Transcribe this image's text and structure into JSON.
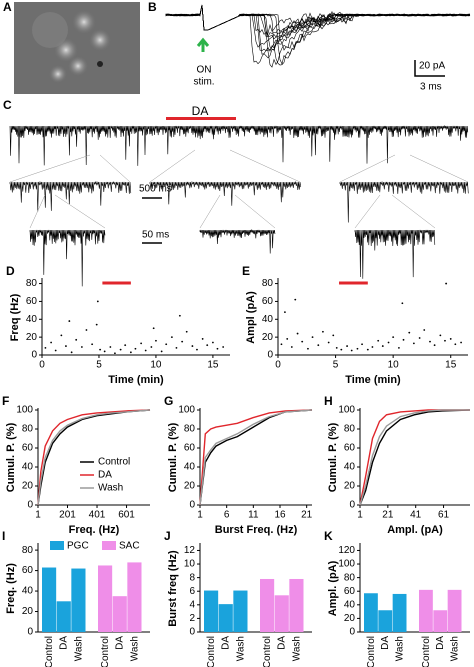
{
  "panels": {
    "a": "A",
    "b": "B",
    "c": "C"
  },
  "trace_b": {
    "stim": "ON",
    "stim2": "stim.",
    "scale_y": "20 pA",
    "scale_x": "3 ms"
  },
  "trace_c": {
    "drug": "DA",
    "scale_1": "500 ms",
    "scale_2": "50 ms"
  },
  "chart_data": [
    {
      "type": "scatter",
      "panel": "D",
      "ylabel": "Freq (Hz)",
      "xlabel": "Time (min)",
      "xlim": [
        0,
        16.5
      ],
      "xticks": [
        0,
        5,
        10,
        15
      ],
      "ylim": [
        0,
        84
      ],
      "yticks": [
        0,
        20,
        40,
        60,
        80
      ],
      "color": "#000000",
      "span_color": "#e0262c",
      "da_span": [
        5.3,
        7.8
      ],
      "x": [
        0.3,
        0.8,
        1.2,
        1.7,
        2.1,
        2.6,
        3.0,
        3.5,
        3.9,
        4.4,
        4.8,
        5.1,
        5.5,
        6.0,
        6.4,
        6.9,
        7.3,
        7.8,
        8.2,
        8.7,
        9.1,
        9.6,
        10.0,
        10.5,
        10.9,
        11.4,
        11.8,
        12.3,
        12.7,
        13.2,
        13.6,
        14.1,
        14.5,
        15.0,
        15.4,
        15.9,
        4.9,
        12.1,
        2.4,
        9.8
      ],
      "values": [
        8,
        14,
        5,
        22,
        10,
        3,
        17,
        9,
        28,
        12,
        34,
        6,
        4,
        9,
        2,
        6,
        11,
        3,
        7,
        13,
        5,
        9,
        16,
        4,
        12,
        20,
        8,
        15,
        26,
        10,
        6,
        18,
        11,
        14,
        7,
        9,
        60,
        44,
        38,
        30
      ]
    },
    {
      "type": "scatter",
      "panel": "E",
      "ylabel": "Ampl (pA)",
      "xlabel": "Time (min)",
      "xlim": [
        0,
        16.5
      ],
      "xticks": [
        0,
        5,
        10,
        15
      ],
      "ylim": [
        0,
        84
      ],
      "yticks": [
        0,
        20,
        40,
        60,
        80
      ],
      "color": "#000000",
      "span_color": "#e0262c",
      "da_span": [
        5.3,
        7.8
      ],
      "x": [
        0.3,
        0.8,
        1.2,
        1.7,
        2.1,
        2.6,
        3.0,
        3.5,
        3.9,
        4.4,
        4.8,
        5.1,
        5.5,
        6.0,
        6.4,
        6.9,
        7.3,
        7.8,
        8.2,
        8.7,
        9.1,
        9.6,
        10.0,
        10.5,
        10.9,
        11.4,
        11.8,
        12.3,
        12.7,
        13.2,
        13.6,
        14.1,
        14.5,
        15.0,
        15.4,
        15.9,
        1.5,
        10.8,
        14.6,
        0.6
      ],
      "values": [
        12,
        18,
        9,
        24,
        15,
        7,
        20,
        11,
        26,
        14,
        22,
        8,
        6,
        10,
        5,
        7,
        12,
        6,
        9,
        16,
        10,
        14,
        20,
        8,
        17,
        25,
        13,
        19,
        28,
        15,
        11,
        22,
        16,
        18,
        12,
        14,
        62,
        58,
        80,
        48
      ]
    },
    {
      "type": "line",
      "panel": "F",
      "ylabel": "Cumul. P. (%)",
      "xlabel": "Freq. (Hz)",
      "xlim": [
        1,
        760
      ],
      "xticks": [
        1,
        201,
        401,
        601
      ],
      "ylim": [
        0,
        100
      ],
      "yticks": [
        0,
        20,
        40,
        60,
        80,
        100
      ],
      "legend": "right",
      "x": [
        1,
        20,
        50,
        100,
        150,
        200,
        300,
        400,
        500,
        600,
        760
      ],
      "series": [
        {
          "name": "Control",
          "color": "#000000",
          "values": [
            0,
            20,
            45,
            65,
            75,
            82,
            90,
            94,
            96,
            98,
            100
          ]
        },
        {
          "name": "DA",
          "color": "#e0262c",
          "values": [
            0,
            35,
            62,
            78,
            86,
            90,
            95,
            97,
            98,
            99,
            100
          ]
        },
        {
          "name": "Wash",
          "color": "#9a9a9a",
          "values": [
            0,
            25,
            50,
            68,
            78,
            84,
            91,
            95,
            97,
            98,
            100
          ]
        }
      ]
    },
    {
      "type": "line",
      "panel": "G",
      "ylabel": "Cumul. P. (%)",
      "xlabel": "Burst Freq. (Hz)",
      "xlim": [
        1,
        22
      ],
      "xticks": [
        1,
        6,
        11,
        16,
        21
      ],
      "ylim": [
        0,
        100
      ],
      "yticks": [
        0,
        20,
        40,
        60,
        80,
        100
      ],
      "x": [
        1,
        2,
        3,
        4,
        6,
        8,
        11,
        14,
        17,
        22
      ],
      "series": [
        {
          "color": "#000000",
          "values": [
            0,
            45,
            55,
            62,
            68,
            72,
            82,
            92,
            98,
            100
          ]
        },
        {
          "color": "#e0262c",
          "values": [
            0,
            75,
            80,
            82,
            84,
            86,
            92,
            97,
            99,
            100
          ]
        },
        {
          "color": "#9a9a9a",
          "values": [
            0,
            50,
            58,
            65,
            70,
            75,
            85,
            93,
            98,
            100
          ]
        }
      ]
    },
    {
      "type": "line",
      "panel": "H",
      "ylabel": "Cumul. P. (%)",
      "xlabel": "Ampl. (pA)",
      "xlim": [
        1,
        80
      ],
      "xticks": [
        1,
        21,
        41,
        61
      ],
      "ylim": [
        0,
        100
      ],
      "yticks": [
        0,
        20,
        40,
        60,
        80,
        100
      ],
      "x": [
        1,
        5,
        10,
        15,
        20,
        30,
        40,
        50,
        60,
        80
      ],
      "series": [
        {
          "color": "#000000",
          "values": [
            0,
            15,
            45,
            65,
            78,
            90,
            95,
            98,
            99,
            100
          ]
        },
        {
          "color": "#e0262c",
          "values": [
            0,
            30,
            70,
            88,
            95,
            98,
            99,
            100,
            100,
            100
          ]
        },
        {
          "color": "#9a9a9a",
          "values": [
            0,
            20,
            52,
            72,
            83,
            93,
            97,
            99,
            100,
            100
          ]
        }
      ]
    },
    {
      "type": "bar",
      "panel": "I",
      "ylabel": "Freq. (Hz)",
      "categories": [
        "Control",
        "DA",
        "Wash"
      ],
      "ylim": [
        0,
        85
      ],
      "yticks": [
        0,
        20,
        40,
        60,
        80
      ],
      "series": [
        {
          "name": "PGC",
          "color": "#1aa3dc",
          "values": [
            63,
            30,
            62
          ]
        },
        {
          "name": "SAC",
          "color": "#ef8ee8",
          "values": [
            65,
            35,
            68
          ]
        }
      ]
    },
    {
      "type": "bar",
      "panel": "J",
      "ylabel": "Burst freq (Hz)",
      "categories": [
        "Control",
        "DA",
        "Wash"
      ],
      "ylim": [
        0,
        12.8
      ],
      "yticks": [
        0,
        2,
        4,
        6,
        8,
        10,
        12
      ],
      "series": [
        {
          "color": "#1aa3dc",
          "values": [
            6.1,
            4.1,
            6.1
          ]
        },
        {
          "color": "#ef8ee8",
          "values": [
            7.8,
            5.4,
            7.8
          ]
        }
      ]
    },
    {
      "type": "bar",
      "panel": "K",
      "ylabel": "Ampl. (pA)",
      "categories": [
        "Control",
        "DA",
        "Wash"
      ],
      "ylim": [
        0,
        128
      ],
      "yticks": [
        0,
        20,
        40,
        60,
        80,
        100,
        120
      ],
      "series": [
        {
          "color": "#1aa3dc",
          "values": [
            57,
            32,
            56
          ]
        },
        {
          "color": "#ef8ee8",
          "values": [
            62,
            32,
            62
          ]
        }
      ]
    }
  ]
}
